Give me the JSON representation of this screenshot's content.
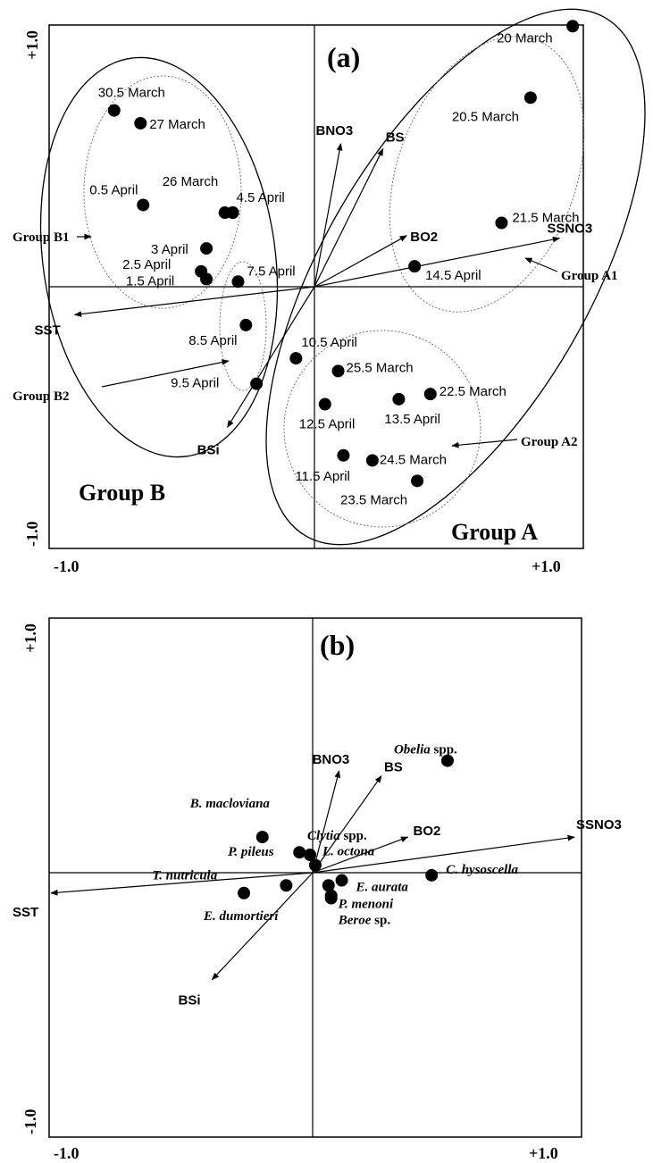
{
  "chart_data": [
    {
      "type": "scatter",
      "panel_label": "(a)",
      "xlim": [
        -1.0,
        1.0
      ],
      "ylim": [
        -1.0,
        1.0
      ],
      "x_tick_labels": [
        "-1.0",
        "+1.0"
      ],
      "y_tick_labels": [
        "-1.0",
        "+1.0"
      ],
      "points": [
        {
          "label": "20 March",
          "x": 0.98,
          "y": 1.02
        },
        {
          "label": "20.5 March",
          "x": 0.82,
          "y": 0.74
        },
        {
          "label": "30.5 March",
          "x": -0.76,
          "y": 0.69
        },
        {
          "label": "27 March",
          "x": -0.66,
          "y": 0.64
        },
        {
          "label": "0.5 April",
          "x": -0.65,
          "y": 0.32
        },
        {
          "label": "26 March",
          "x": -0.34,
          "y": 0.29
        },
        {
          "label": "",
          "x": -0.31,
          "y": 0.29
        },
        {
          "label": "4.5 April",
          "x": -0.31,
          "y": 0.29
        },
        {
          "label": "21.5 March",
          "x": 0.71,
          "y": 0.25
        },
        {
          "label": "3 April",
          "x": -0.41,
          "y": 0.15
        },
        {
          "label": "2.5 April",
          "x": -0.43,
          "y": 0.06
        },
        {
          "label": "1.5 April",
          "x": -0.41,
          "y": 0.03
        },
        {
          "label": "7.5 April",
          "x": -0.29,
          "y": 0.02
        },
        {
          "label": "14.5 April",
          "x": 0.38,
          "y": 0.08
        },
        {
          "label": "8.5 April",
          "x": -0.26,
          "y": -0.15
        },
        {
          "label": "10.5 April",
          "x": -0.07,
          "y": -0.28
        },
        {
          "label": "25.5 March",
          "x": 0.09,
          "y": -0.33
        },
        {
          "label": "9.5 April",
          "x": -0.22,
          "y": -0.38
        },
        {
          "label": "22.5 March",
          "x": 0.44,
          "y": -0.42
        },
        {
          "label": "13.5 April",
          "x": 0.32,
          "y": -0.44
        },
        {
          "label": "12.5 April",
          "x": 0.04,
          "y": -0.46
        },
        {
          "label": "11.5 April",
          "x": 0.11,
          "y": -0.66
        },
        {
          "label": "24.5 March",
          "x": 0.22,
          "y": -0.68
        },
        {
          "label": "23.5 March",
          "x": 0.39,
          "y": -0.76
        }
      ],
      "vectors": [
        {
          "label": "BNO3",
          "x": 0.1,
          "y": 0.56
        },
        {
          "label": "BS",
          "x": 0.26,
          "y": 0.54
        },
        {
          "label": "BO2",
          "x": 0.35,
          "y": 0.2
        },
        {
          "label": "SSNO3",
          "x": 0.93,
          "y": 0.19
        },
        {
          "label": "SST",
          "x": -0.91,
          "y": -0.11
        },
        {
          "label": "BSi",
          "x": -0.33,
          "y": -0.55
        }
      ],
      "groups": [
        {
          "label": "Group A"
        },
        {
          "label": "Group B"
        },
        {
          "label": "Group A1"
        },
        {
          "label": "Group A2"
        },
        {
          "label": "Group B1"
        },
        {
          "label": "Group B2"
        }
      ]
    },
    {
      "type": "scatter",
      "panel_label": "(b)",
      "xlim": [
        -1.0,
        1.0
      ],
      "ylim": [
        -1.0,
        1.0
      ],
      "x_tick_labels": [
        "-1.0",
        "+1.0"
      ],
      "y_tick_labels": [
        "-1.0",
        "+1.0"
      ],
      "points": [
        {
          "label_italic": "Obelia",
          "label_suffix": " spp.",
          "x": 0.51,
          "y": 0.44
        },
        {
          "label_italic": "B. macloviana",
          "label_suffix": "",
          "x": -0.19,
          "y": 0.14
        },
        {
          "label_italic": "P. pileus",
          "label_suffix": "",
          "x": -0.05,
          "y": 0.08
        },
        {
          "label_italic": "Clytia",
          "label_suffix": " spp.",
          "x": -0.01,
          "y": 0.07
        },
        {
          "label_italic": "L. octona",
          "label_suffix": "",
          "x": 0.01,
          "y": 0.03
        },
        {
          "label_italic": "C. hysoscella",
          "label_suffix": "",
          "x": 0.45,
          "y": -0.01
        },
        {
          "label_italic": "T. nutricula",
          "label_suffix": "",
          "x": -0.1,
          "y": -0.05
        },
        {
          "label_italic": "E. aurata",
          "label_suffix": "",
          "x": 0.11,
          "y": -0.03
        },
        {
          "label_italic": "",
          "label_suffix": "",
          "x": 0.06,
          "y": -0.05
        },
        {
          "label_italic": "E. dumortieri",
          "label_suffix": "",
          "x": -0.26,
          "y": -0.08
        },
        {
          "label_italic": "P. menoni",
          "label_suffix": "",
          "x": 0.07,
          "y": -0.09
        },
        {
          "label_italic": "Beroe",
          "label_suffix": " sp.",
          "x": 0.07,
          "y": -0.1
        }
      ],
      "vectors": [
        {
          "label": "BNO3",
          "x": 0.1,
          "y": 0.4
        },
        {
          "label": "BS",
          "x": 0.26,
          "y": 0.38
        },
        {
          "label": "BO2",
          "x": 0.36,
          "y": 0.14
        },
        {
          "label": "SSNO3",
          "x": 0.99,
          "y": 0.14
        },
        {
          "label": "SST",
          "x": -0.99,
          "y": -0.08
        },
        {
          "label": "BSi",
          "x": -0.38,
          "y": -0.42
        }
      ]
    }
  ]
}
